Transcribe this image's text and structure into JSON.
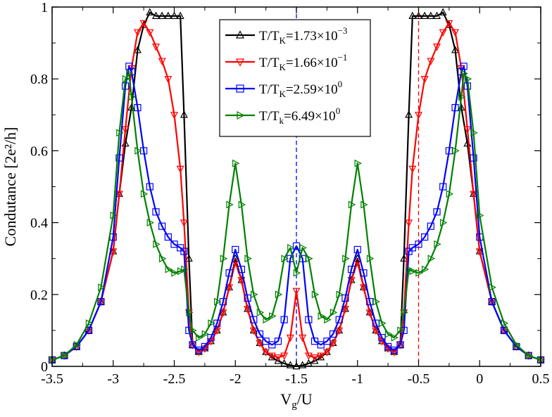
{
  "chart_data": {
    "type": "line",
    "title": "",
    "xlabel_main": "V",
    "xlabel_sub": "g",
    "xlabel_tail": "/U",
    "ylabel": "Condutance [2e²/h]",
    "xlim": [
      -3.5,
      0.5
    ],
    "ylim": [
      0,
      1
    ],
    "xticks": [
      -3.5,
      -3,
      -2.5,
      -2,
      -1.5,
      -1,
      -0.5,
      0,
      0.5
    ],
    "xtick_labels": [
      "-3.5",
      "-3",
      "-2.5",
      "-2",
      "-1.5",
      "-1",
      "-0.5",
      "0",
      "0.5"
    ],
    "yticks": [
      0,
      0.2,
      0.4,
      0.6,
      0.8,
      1
    ],
    "ytick_labels": [
      "0",
      "0.2",
      "0.4",
      "0.6",
      "0.8",
      "1"
    ],
    "reference_lines": [
      {
        "x": -1.5,
        "color": "#0000ff",
        "style": "dashed"
      },
      {
        "x": -0.5,
        "color": "#ff0000",
        "style": "dashed"
      }
    ],
    "legend_position": "top-center",
    "series": [
      {
        "name": "T/T_K=1.73×10^-3",
        "legend_prefix": "T/T",
        "legend_sub": "K",
        "legend_mid": "=1.73×10",
        "legend_sup": "−3",
        "color": "#000000",
        "marker": "triangle-up",
        "points": [
          [
            -3.5,
            0.018
          ],
          [
            -3.4,
            0.03
          ],
          [
            -3.3,
            0.055
          ],
          [
            -3.2,
            0.1
          ],
          [
            -3.1,
            0.18
          ],
          [
            -3.0,
            0.32
          ],
          [
            -2.95,
            0.48
          ],
          [
            -2.9,
            0.62
          ],
          [
            -2.85,
            0.72
          ],
          [
            -2.8,
            0.88
          ],
          [
            -2.75,
            0.95
          ],
          [
            -2.7,
            0.985
          ],
          [
            -2.65,
            0.975
          ],
          [
            -2.6,
            0.975
          ],
          [
            -2.55,
            0.975
          ],
          [
            -2.5,
            0.975
          ],
          [
            -2.45,
            0.975
          ],
          [
            -2.42,
            0.7
          ],
          [
            -2.38,
            0.3
          ],
          [
            -2.35,
            0.06
          ],
          [
            -2.3,
            0.04
          ],
          [
            -2.25,
            0.05
          ],
          [
            -2.2,
            0.07
          ],
          [
            -2.15,
            0.1
          ],
          [
            -2.1,
            0.15
          ],
          [
            -2.05,
            0.22
          ],
          [
            -2.0,
            0.3
          ],
          [
            -1.95,
            0.24
          ],
          [
            -1.9,
            0.16
          ],
          [
            -1.85,
            0.1
          ],
          [
            -1.8,
            0.065
          ],
          [
            -1.75,
            0.04
          ],
          [
            -1.7,
            0.025
          ],
          [
            -1.65,
            0.015
          ],
          [
            -1.6,
            0.008
          ],
          [
            -1.55,
            0.003
          ],
          [
            -1.5,
            0.0
          ],
          [
            -1.45,
            0.003
          ],
          [
            -1.4,
            0.008
          ],
          [
            -1.35,
            0.015
          ],
          [
            -1.3,
            0.025
          ],
          [
            -1.25,
            0.04
          ],
          [
            -1.2,
            0.065
          ],
          [
            -1.15,
            0.1
          ],
          [
            -1.1,
            0.16
          ],
          [
            -1.05,
            0.24
          ],
          [
            -1.0,
            0.3
          ],
          [
            -0.95,
            0.22
          ],
          [
            -0.9,
            0.15
          ],
          [
            -0.85,
            0.1
          ],
          [
            -0.8,
            0.07
          ],
          [
            -0.75,
            0.05
          ],
          [
            -0.7,
            0.04
          ],
          [
            -0.65,
            0.06
          ],
          [
            -0.62,
            0.3
          ],
          [
            -0.58,
            0.7
          ],
          [
            -0.55,
            0.975
          ],
          [
            -0.5,
            0.975
          ],
          [
            -0.45,
            0.975
          ],
          [
            -0.4,
            0.975
          ],
          [
            -0.35,
            0.975
          ],
          [
            -0.3,
            0.985
          ],
          [
            -0.25,
            0.95
          ],
          [
            -0.2,
            0.88
          ],
          [
            -0.15,
            0.72
          ],
          [
            -0.1,
            0.62
          ],
          [
            -0.05,
            0.48
          ],
          [
            0.0,
            0.32
          ],
          [
            0.1,
            0.18
          ],
          [
            0.2,
            0.1
          ],
          [
            0.3,
            0.055
          ],
          [
            0.4,
            0.03
          ],
          [
            0.5,
            0.018
          ]
        ]
      },
      {
        "name": "T/T_K=1.66×10^-1",
        "legend_prefix": "T/T",
        "legend_sub": "K",
        "legend_mid": "=1.66×10",
        "legend_sup": "−1",
        "color": "#ff0000",
        "marker": "triangle-down",
        "points": [
          [
            -3.5,
            0.018
          ],
          [
            -3.4,
            0.03
          ],
          [
            -3.3,
            0.055
          ],
          [
            -3.2,
            0.1
          ],
          [
            -3.1,
            0.18
          ],
          [
            -3.0,
            0.32
          ],
          [
            -2.95,
            0.48
          ],
          [
            -2.9,
            0.66
          ],
          [
            -2.85,
            0.83
          ],
          [
            -2.8,
            0.93
          ],
          [
            -2.75,
            0.955
          ],
          [
            -2.7,
            0.93
          ],
          [
            -2.65,
            0.89
          ],
          [
            -2.6,
            0.85
          ],
          [
            -2.55,
            0.8
          ],
          [
            -2.5,
            0.7
          ],
          [
            -2.45,
            0.55
          ],
          [
            -2.42,
            0.4
          ],
          [
            -2.38,
            0.15
          ],
          [
            -2.35,
            0.06
          ],
          [
            -2.3,
            0.04
          ],
          [
            -2.25,
            0.05
          ],
          [
            -2.2,
            0.07
          ],
          [
            -2.15,
            0.1
          ],
          [
            -2.1,
            0.15
          ],
          [
            -2.05,
            0.22
          ],
          [
            -2.0,
            0.29
          ],
          [
            -1.95,
            0.24
          ],
          [
            -1.9,
            0.16
          ],
          [
            -1.85,
            0.1
          ],
          [
            -1.8,
            0.065
          ],
          [
            -1.75,
            0.04
          ],
          [
            -1.7,
            0.03
          ],
          [
            -1.65,
            0.025
          ],
          [
            -1.6,
            0.03
          ],
          [
            -1.55,
            0.08
          ],
          [
            -1.5,
            0.21
          ],
          [
            -1.45,
            0.08
          ],
          [
            -1.4,
            0.03
          ],
          [
            -1.35,
            0.025
          ],
          [
            -1.3,
            0.03
          ],
          [
            -1.25,
            0.04
          ],
          [
            -1.2,
            0.065
          ],
          [
            -1.15,
            0.1
          ],
          [
            -1.1,
            0.16
          ],
          [
            -1.05,
            0.24
          ],
          [
            -1.0,
            0.29
          ],
          [
            -0.95,
            0.22
          ],
          [
            -0.9,
            0.15
          ],
          [
            -0.85,
            0.1
          ],
          [
            -0.8,
            0.07
          ],
          [
            -0.75,
            0.05
          ],
          [
            -0.7,
            0.04
          ],
          [
            -0.65,
            0.06
          ],
          [
            -0.62,
            0.15
          ],
          [
            -0.58,
            0.4
          ],
          [
            -0.55,
            0.55
          ],
          [
            -0.5,
            0.7
          ],
          [
            -0.45,
            0.8
          ],
          [
            -0.4,
            0.85
          ],
          [
            -0.35,
            0.89
          ],
          [
            -0.3,
            0.93
          ],
          [
            -0.25,
            0.955
          ],
          [
            -0.2,
            0.93
          ],
          [
            -0.15,
            0.83
          ],
          [
            -0.1,
            0.66
          ],
          [
            -0.05,
            0.48
          ],
          [
            0.0,
            0.32
          ],
          [
            0.1,
            0.18
          ],
          [
            0.2,
            0.1
          ],
          [
            0.3,
            0.055
          ],
          [
            0.4,
            0.03
          ],
          [
            0.5,
            0.018
          ]
        ]
      },
      {
        "name": "T/T_K=2.59×10^0",
        "legend_prefix": "T/T",
        "legend_sub": "K",
        "legend_mid": "=2.59×10",
        "legend_sup": "0",
        "color": "#0000ff",
        "marker": "square",
        "points": [
          [
            -3.5,
            0.018
          ],
          [
            -3.4,
            0.03
          ],
          [
            -3.3,
            0.055
          ],
          [
            -3.2,
            0.1
          ],
          [
            -3.1,
            0.18
          ],
          [
            -3.0,
            0.36
          ],
          [
            -2.95,
            0.58
          ],
          [
            -2.9,
            0.78
          ],
          [
            -2.87,
            0.835
          ],
          [
            -2.85,
            0.82
          ],
          [
            -2.8,
            0.72
          ],
          [
            -2.75,
            0.6
          ],
          [
            -2.7,
            0.5
          ],
          [
            -2.65,
            0.43
          ],
          [
            -2.6,
            0.39
          ],
          [
            -2.55,
            0.36
          ],
          [
            -2.5,
            0.34
          ],
          [
            -2.45,
            0.33
          ],
          [
            -2.42,
            0.32
          ],
          [
            -2.38,
            0.1
          ],
          [
            -2.35,
            0.06
          ],
          [
            -2.3,
            0.045
          ],
          [
            -2.25,
            0.055
          ],
          [
            -2.2,
            0.08
          ],
          [
            -2.15,
            0.12
          ],
          [
            -2.1,
            0.18
          ],
          [
            -2.05,
            0.26
          ],
          [
            -2.0,
            0.325
          ],
          [
            -1.95,
            0.27
          ],
          [
            -1.9,
            0.19
          ],
          [
            -1.85,
            0.13
          ],
          [
            -1.8,
            0.09
          ],
          [
            -1.75,
            0.07
          ],
          [
            -1.7,
            0.06
          ],
          [
            -1.65,
            0.07
          ],
          [
            -1.6,
            0.13
          ],
          [
            -1.55,
            0.3
          ],
          [
            -1.5,
            0.335
          ],
          [
            -1.45,
            0.3
          ],
          [
            -1.4,
            0.13
          ],
          [
            -1.35,
            0.07
          ],
          [
            -1.3,
            0.06
          ],
          [
            -1.25,
            0.07
          ],
          [
            -1.2,
            0.09
          ],
          [
            -1.15,
            0.13
          ],
          [
            -1.1,
            0.19
          ],
          [
            -1.05,
            0.27
          ],
          [
            -1.0,
            0.325
          ],
          [
            -0.95,
            0.26
          ],
          [
            -0.9,
            0.18
          ],
          [
            -0.85,
            0.12
          ],
          [
            -0.8,
            0.08
          ],
          [
            -0.75,
            0.055
          ],
          [
            -0.7,
            0.045
          ],
          [
            -0.65,
            0.06
          ],
          [
            -0.62,
            0.1
          ],
          [
            -0.58,
            0.32
          ],
          [
            -0.55,
            0.33
          ],
          [
            -0.5,
            0.34
          ],
          [
            -0.45,
            0.36
          ],
          [
            -0.4,
            0.39
          ],
          [
            -0.35,
            0.43
          ],
          [
            -0.3,
            0.5
          ],
          [
            -0.25,
            0.6
          ],
          [
            -0.2,
            0.72
          ],
          [
            -0.15,
            0.82
          ],
          [
            -0.13,
            0.835
          ],
          [
            -0.1,
            0.78
          ],
          [
            -0.05,
            0.58
          ],
          [
            0.0,
            0.36
          ],
          [
            0.1,
            0.18
          ],
          [
            0.2,
            0.1
          ],
          [
            0.3,
            0.055
          ],
          [
            0.4,
            0.03
          ],
          [
            0.5,
            0.018
          ]
        ]
      },
      {
        "name": "T/T_K=6.49×10^0",
        "legend_prefix": "T/T",
        "legend_sub": "k",
        "legend_mid": "=6.49×10",
        "legend_sup": "0",
        "color": "#008000",
        "marker": "triangle-right",
        "points": [
          [
            -3.5,
            0.018
          ],
          [
            -3.4,
            0.03
          ],
          [
            -3.3,
            0.06
          ],
          [
            -3.2,
            0.12
          ],
          [
            -3.1,
            0.22
          ],
          [
            -3.0,
            0.42
          ],
          [
            -2.95,
            0.65
          ],
          [
            -2.9,
            0.8
          ],
          [
            -2.87,
            0.815
          ],
          [
            -2.85,
            0.75
          ],
          [
            -2.8,
            0.6
          ],
          [
            -2.75,
            0.48
          ],
          [
            -2.7,
            0.4
          ],
          [
            -2.65,
            0.34
          ],
          [
            -2.6,
            0.3
          ],
          [
            -2.55,
            0.27
          ],
          [
            -2.5,
            0.26
          ],
          [
            -2.45,
            0.265
          ],
          [
            -2.42,
            0.27
          ],
          [
            -2.38,
            0.15
          ],
          [
            -2.35,
            0.1
          ],
          [
            -2.3,
            0.08
          ],
          [
            -2.25,
            0.09
          ],
          [
            -2.2,
            0.12
          ],
          [
            -2.15,
            0.18
          ],
          [
            -2.1,
            0.3
          ],
          [
            -2.05,
            0.45
          ],
          [
            -2.0,
            0.565
          ],
          [
            -1.95,
            0.45
          ],
          [
            -1.9,
            0.3
          ],
          [
            -1.85,
            0.2
          ],
          [
            -1.8,
            0.15
          ],
          [
            -1.75,
            0.13
          ],
          [
            -1.7,
            0.14
          ],
          [
            -1.65,
            0.2
          ],
          [
            -1.6,
            0.3
          ],
          [
            -1.55,
            0.33
          ],
          [
            -1.5,
            0.26
          ],
          [
            -1.45,
            0.33
          ],
          [
            -1.4,
            0.3
          ],
          [
            -1.35,
            0.2
          ],
          [
            -1.3,
            0.14
          ],
          [
            -1.25,
            0.13
          ],
          [
            -1.2,
            0.15
          ],
          [
            -1.15,
            0.2
          ],
          [
            -1.1,
            0.3
          ],
          [
            -1.05,
            0.45
          ],
          [
            -1.0,
            0.565
          ],
          [
            -0.95,
            0.45
          ],
          [
            -0.9,
            0.3
          ],
          [
            -0.85,
            0.18
          ],
          [
            -0.8,
            0.12
          ],
          [
            -0.75,
            0.09
          ],
          [
            -0.7,
            0.08
          ],
          [
            -0.65,
            0.1
          ],
          [
            -0.62,
            0.15
          ],
          [
            -0.58,
            0.27
          ],
          [
            -0.55,
            0.265
          ],
          [
            -0.5,
            0.26
          ],
          [
            -0.45,
            0.27
          ],
          [
            -0.4,
            0.3
          ],
          [
            -0.35,
            0.34
          ],
          [
            -0.3,
            0.4
          ],
          [
            -0.25,
            0.48
          ],
          [
            -0.2,
            0.6
          ],
          [
            -0.15,
            0.75
          ],
          [
            -0.13,
            0.815
          ],
          [
            -0.1,
            0.8
          ],
          [
            -0.05,
            0.65
          ],
          [
            0.0,
            0.42
          ],
          [
            0.1,
            0.22
          ],
          [
            0.2,
            0.12
          ],
          [
            0.3,
            0.06
          ],
          [
            0.4,
            0.03
          ],
          [
            0.5,
            0.018
          ]
        ]
      }
    ]
  }
}
